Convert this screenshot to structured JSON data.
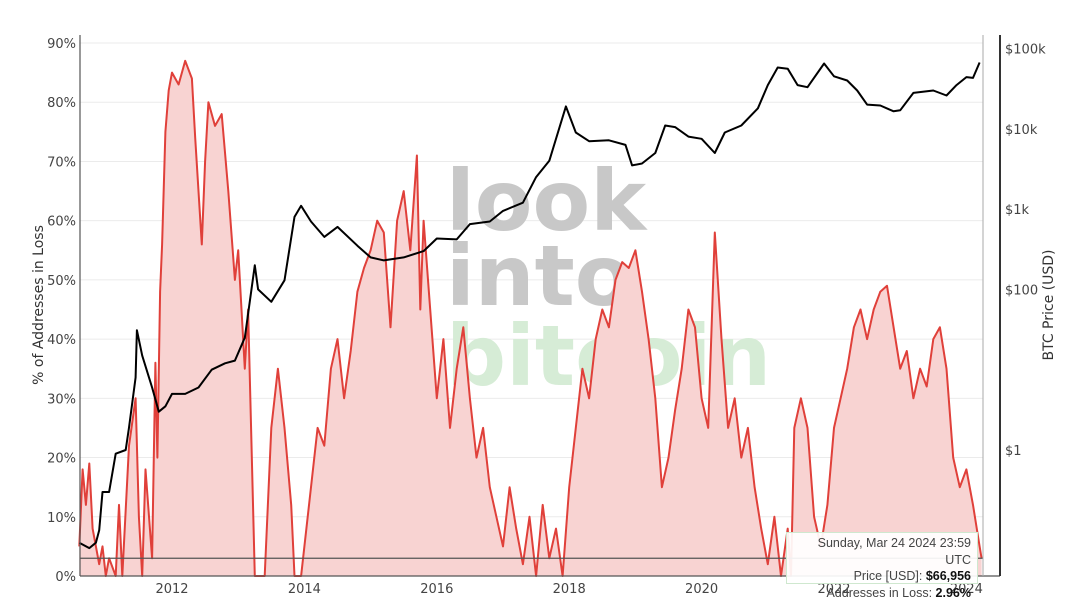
{
  "chart_data": {
    "type": "line",
    "title": "",
    "xlabel": "",
    "ylabel": "% of Addresses in Loss",
    "y2label": "BTC Price (USD)",
    "y_ticks": [
      "0%",
      "10%",
      "20%",
      "30%",
      "40%",
      "50%",
      "60%",
      "70%",
      "80%",
      "90%"
    ],
    "y2_ticks": [
      "$1",
      "$100",
      "$1k",
      "$10k",
      "$100k"
    ],
    "x_ticks": [
      "2012",
      "2014",
      "2016",
      "2018",
      "2020",
      "2022",
      "2024"
    ],
    "ylim": [
      0,
      90
    ],
    "y2_scale": "log",
    "grid": true,
    "colors": {
      "loss_line": "#e0403a",
      "loss_fill": "#f8d3d2",
      "price_line": "#000000",
      "ref_line": "#555555"
    },
    "reference_line_pct": 3,
    "series": [
      {
        "name": "Addresses in Loss (%)",
        "axis": "left",
        "points": [
          [
            2010.6,
            5
          ],
          [
            2010.65,
            18
          ],
          [
            2010.7,
            12
          ],
          [
            2010.75,
            19
          ],
          [
            2010.8,
            8
          ],
          [
            2010.9,
            2
          ],
          [
            2010.95,
            5
          ],
          [
            2011.0,
            0
          ],
          [
            2011.05,
            3
          ],
          [
            2011.15,
            0
          ],
          [
            2011.2,
            12
          ],
          [
            2011.25,
            0
          ],
          [
            2011.35,
            22
          ],
          [
            2011.45,
            30
          ],
          [
            2011.5,
            10
          ],
          [
            2011.55,
            0
          ],
          [
            2011.6,
            18
          ],
          [
            2011.7,
            3
          ],
          [
            2011.75,
            36
          ],
          [
            2011.78,
            20
          ],
          [
            2011.82,
            48
          ],
          [
            2011.85,
            56
          ],
          [
            2011.9,
            75
          ],
          [
            2011.95,
            82
          ],
          [
            2012.0,
            85
          ],
          [
            2012.1,
            83
          ],
          [
            2012.2,
            87
          ],
          [
            2012.3,
            84
          ],
          [
            2012.35,
            74
          ],
          [
            2012.45,
            56
          ],
          [
            2012.5,
            70
          ],
          [
            2012.55,
            80
          ],
          [
            2012.65,
            76
          ],
          [
            2012.75,
            78
          ],
          [
            2012.85,
            65
          ],
          [
            2012.95,
            50
          ],
          [
            2013.0,
            55
          ],
          [
            2013.1,
            35
          ],
          [
            2013.15,
            45
          ],
          [
            2013.25,
            0
          ],
          [
            2013.4,
            0
          ],
          [
            2013.5,
            25
          ],
          [
            2013.6,
            35
          ],
          [
            2013.7,
            25
          ],
          [
            2013.8,
            12
          ],
          [
            2013.85,
            0
          ],
          [
            2013.95,
            0
          ],
          [
            2014.0,
            5
          ],
          [
            2014.1,
            15
          ],
          [
            2014.2,
            25
          ],
          [
            2014.3,
            22
          ],
          [
            2014.4,
            35
          ],
          [
            2014.5,
            40
          ],
          [
            2014.6,
            30
          ],
          [
            2014.7,
            38
          ],
          [
            2014.8,
            48
          ],
          [
            2014.9,
            52
          ],
          [
            2015.0,
            55
          ],
          [
            2015.1,
            60
          ],
          [
            2015.2,
            58
          ],
          [
            2015.3,
            42
          ],
          [
            2015.4,
            60
          ],
          [
            2015.5,
            65
          ],
          [
            2015.6,
            55
          ],
          [
            2015.7,
            71
          ],
          [
            2015.75,
            45
          ],
          [
            2015.8,
            60
          ],
          [
            2015.9,
            45
          ],
          [
            2016.0,
            30
          ],
          [
            2016.1,
            40
          ],
          [
            2016.2,
            25
          ],
          [
            2016.3,
            35
          ],
          [
            2016.4,
            42
          ],
          [
            2016.5,
            30
          ],
          [
            2016.6,
            20
          ],
          [
            2016.7,
            25
          ],
          [
            2016.8,
            15
          ],
          [
            2016.9,
            10
          ],
          [
            2017.0,
            5
          ],
          [
            2017.1,
            15
          ],
          [
            2017.2,
            8
          ],
          [
            2017.3,
            2
          ],
          [
            2017.4,
            10
          ],
          [
            2017.5,
            0
          ],
          [
            2017.6,
            12
          ],
          [
            2017.7,
            3
          ],
          [
            2017.8,
            8
          ],
          [
            2017.9,
            0
          ],
          [
            2018.0,
            15
          ],
          [
            2018.1,
            25
          ],
          [
            2018.2,
            35
          ],
          [
            2018.3,
            30
          ],
          [
            2018.4,
            40
          ],
          [
            2018.5,
            45
          ],
          [
            2018.6,
            42
          ],
          [
            2018.7,
            50
          ],
          [
            2018.8,
            53
          ],
          [
            2018.9,
            52
          ],
          [
            2019.0,
            55
          ],
          [
            2019.1,
            48
          ],
          [
            2019.2,
            40
          ],
          [
            2019.3,
            30
          ],
          [
            2019.4,
            15
          ],
          [
            2019.5,
            20
          ],
          [
            2019.6,
            28
          ],
          [
            2019.7,
            35
          ],
          [
            2019.8,
            45
          ],
          [
            2019.9,
            42
          ],
          [
            2020.0,
            30
          ],
          [
            2020.1,
            25
          ],
          [
            2020.2,
            58
          ],
          [
            2020.3,
            40
          ],
          [
            2020.4,
            25
          ],
          [
            2020.5,
            30
          ],
          [
            2020.6,
            20
          ],
          [
            2020.7,
            25
          ],
          [
            2020.8,
            15
          ],
          [
            2020.9,
            8
          ],
          [
            2021.0,
            2
          ],
          [
            2021.1,
            10
          ],
          [
            2021.2,
            0
          ],
          [
            2021.3,
            8
          ],
          [
            2021.35,
            0
          ],
          [
            2021.4,
            25
          ],
          [
            2021.5,
            30
          ],
          [
            2021.6,
            25
          ],
          [
            2021.7,
            10
          ],
          [
            2021.8,
            5
          ],
          [
            2021.9,
            12
          ],
          [
            2022.0,
            25
          ],
          [
            2022.1,
            30
          ],
          [
            2022.2,
            35
          ],
          [
            2022.3,
            42
          ],
          [
            2022.4,
            45
          ],
          [
            2022.5,
            40
          ],
          [
            2022.6,
            45
          ],
          [
            2022.7,
            48
          ],
          [
            2022.8,
            49
          ],
          [
            2022.9,
            42
          ],
          [
            2023.0,
            35
          ],
          [
            2023.1,
            38
          ],
          [
            2023.2,
            30
          ],
          [
            2023.3,
            35
          ],
          [
            2023.4,
            32
          ],
          [
            2023.5,
            40
          ],
          [
            2023.6,
            42
          ],
          [
            2023.7,
            35
          ],
          [
            2023.8,
            20
          ],
          [
            2023.9,
            15
          ],
          [
            2024.0,
            18
          ],
          [
            2024.1,
            12
          ],
          [
            2024.2,
            5
          ],
          [
            2024.23,
            2.96
          ]
        ]
      },
      {
        "name": "BTC Price (USD)",
        "axis": "right",
        "points": [
          [
            2010.6,
            0.07
          ],
          [
            2010.75,
            0.06
          ],
          [
            2010.85,
            0.07
          ],
          [
            2010.9,
            0.1
          ],
          [
            2010.95,
            0.3
          ],
          [
            2011.05,
            0.3
          ],
          [
            2011.15,
            0.9
          ],
          [
            2011.3,
            1.0
          ],
          [
            2011.35,
            1.9
          ],
          [
            2011.45,
            8
          ],
          [
            2011.47,
            31
          ],
          [
            2011.55,
            15
          ],
          [
            2011.7,
            6
          ],
          [
            2011.8,
            3
          ],
          [
            2011.9,
            3.5
          ],
          [
            2012.0,
            5
          ],
          [
            2012.2,
            5
          ],
          [
            2012.4,
            6
          ],
          [
            2012.6,
            10
          ],
          [
            2012.8,
            12
          ],
          [
            2012.95,
            13
          ],
          [
            2013.1,
            25
          ],
          [
            2013.25,
            200
          ],
          [
            2013.3,
            100
          ],
          [
            2013.5,
            70
          ],
          [
            2013.7,
            130
          ],
          [
            2013.85,
            800
          ],
          [
            2013.95,
            1100
          ],
          [
            2014.1,
            700
          ],
          [
            2014.3,
            450
          ],
          [
            2014.5,
            600
          ],
          [
            2014.8,
            350
          ],
          [
            2015.0,
            250
          ],
          [
            2015.2,
            230
          ],
          [
            2015.5,
            250
          ],
          [
            2015.8,
            300
          ],
          [
            2016.0,
            430
          ],
          [
            2016.3,
            420
          ],
          [
            2016.5,
            650
          ],
          [
            2016.8,
            700
          ],
          [
            2017.0,
            950
          ],
          [
            2017.3,
            1200
          ],
          [
            2017.5,
            2500
          ],
          [
            2017.7,
            4000
          ],
          [
            2017.95,
            19000
          ],
          [
            2018.1,
            9000
          ],
          [
            2018.3,
            7000
          ],
          [
            2018.6,
            7200
          ],
          [
            2018.85,
            6300
          ],
          [
            2018.95,
            3500
          ],
          [
            2019.1,
            3700
          ],
          [
            2019.3,
            5000
          ],
          [
            2019.45,
            11000
          ],
          [
            2019.6,
            10500
          ],
          [
            2019.8,
            8000
          ],
          [
            2020.0,
            7500
          ],
          [
            2020.2,
            5000
          ],
          [
            2020.35,
            9000
          ],
          [
            2020.6,
            11000
          ],
          [
            2020.85,
            18000
          ],
          [
            2021.0,
            35000
          ],
          [
            2021.15,
            58000
          ],
          [
            2021.3,
            56000
          ],
          [
            2021.45,
            35000
          ],
          [
            2021.6,
            33000
          ],
          [
            2021.85,
            65000
          ],
          [
            2022.0,
            45000
          ],
          [
            2022.2,
            40000
          ],
          [
            2022.35,
            30000
          ],
          [
            2022.5,
            20000
          ],
          [
            2022.7,
            19500
          ],
          [
            2022.9,
            16500
          ],
          [
            2023.0,
            17000
          ],
          [
            2023.2,
            28000
          ],
          [
            2023.5,
            30000
          ],
          [
            2023.7,
            26000
          ],
          [
            2023.85,
            35000
          ],
          [
            2024.0,
            44000
          ],
          [
            2024.1,
            43000
          ],
          [
            2024.2,
            66956
          ]
        ]
      }
    ],
    "watermark": [
      "look",
      "into",
      "bitcoin"
    ]
  },
  "tooltip": {
    "date": "Sunday, Mar 24 2024 23:59 UTC",
    "price_label": "Price [USD]: ",
    "price_value": "$66,956",
    "loss_label": "Addresses in Loss: ",
    "loss_value": "2.96%"
  }
}
